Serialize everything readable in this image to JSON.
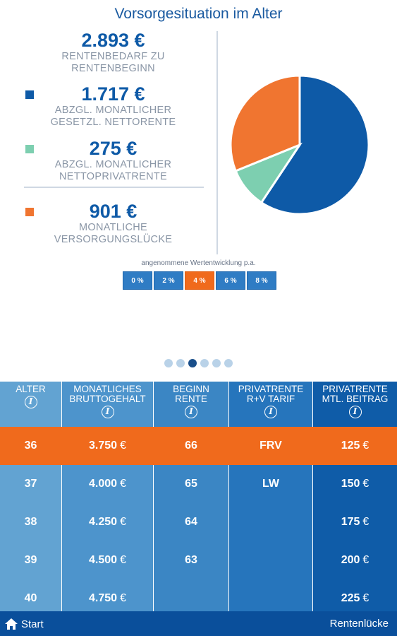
{
  "title": "Vorsorgesituation im Alter",
  "summary": {
    "need": {
      "value": "2.893 €",
      "label_line1": "RENTENBEDARF ZU",
      "label_line2": "RENTENBEGINN"
    },
    "statutory": {
      "value": "1.717 €",
      "label_line1": "ABZGL. MONATLICHER",
      "label_line2": "GESETZL. NETTORENTE",
      "color": "#0e5aa7"
    },
    "private": {
      "value": "275 €",
      "label_line1": "ABZGL. MONATLICHER",
      "label_line2": "NETTOPRIVATRENTE",
      "color": "#7dcfb0"
    },
    "gap": {
      "value": "901 €",
      "label_line1": "MONATLICHE",
      "label_line2": "VERSORGUNGSLÜCKE",
      "color": "#f07530"
    }
  },
  "chart_data": {
    "type": "pie",
    "slices": [
      {
        "value": 1717,
        "color": "#0e5aa7"
      },
      {
        "value": 275,
        "color": "#7dcfb0"
      },
      {
        "value": 901,
        "color": "#f07530"
      }
    ]
  },
  "rate_selector": {
    "caption": "angenommene Wertentwicklung p.a.",
    "options": [
      "0 %",
      "2 %",
      "4 %",
      "6 %",
      "8 %"
    ],
    "selected": "4 %"
  },
  "pager": {
    "count": 6,
    "active_index": 2
  },
  "table": {
    "headers": [
      {
        "line1": "ALTER",
        "line2": ""
      },
      {
        "line1": "MONATLICHES",
        "line2": "BRUTTOGEHALT"
      },
      {
        "line1": "BEGINN",
        "line2": "RENTE"
      },
      {
        "line1": "PRIVATRENTE",
        "line2": "R+V TARIF"
      },
      {
        "line1": "PRIVATRENTE",
        "line2": "MTL. BEITRAG"
      }
    ],
    "info_symbol": "i",
    "currency": "€",
    "rows": [
      {
        "age": "36",
        "salary": "3.750",
        "start": "66",
        "tariff": "FRV",
        "contribution": "125"
      },
      {
        "age": "37",
        "salary": "4.000",
        "start": "65",
        "tariff": "LW",
        "contribution": "150"
      },
      {
        "age": "38",
        "salary": "4.250",
        "start": "64",
        "tariff": "",
        "contribution": "175"
      },
      {
        "age": "39",
        "salary": "4.500",
        "start": "63",
        "tariff": "",
        "contribution": "200"
      },
      {
        "age": "40",
        "salary": "4.750",
        "start": "",
        "tariff": "",
        "contribution": "225"
      }
    ],
    "highlighted_row": 0
  },
  "footer": {
    "start_label": "Start",
    "start_icon": "home-icon",
    "right_label": "Rentenlücke"
  }
}
